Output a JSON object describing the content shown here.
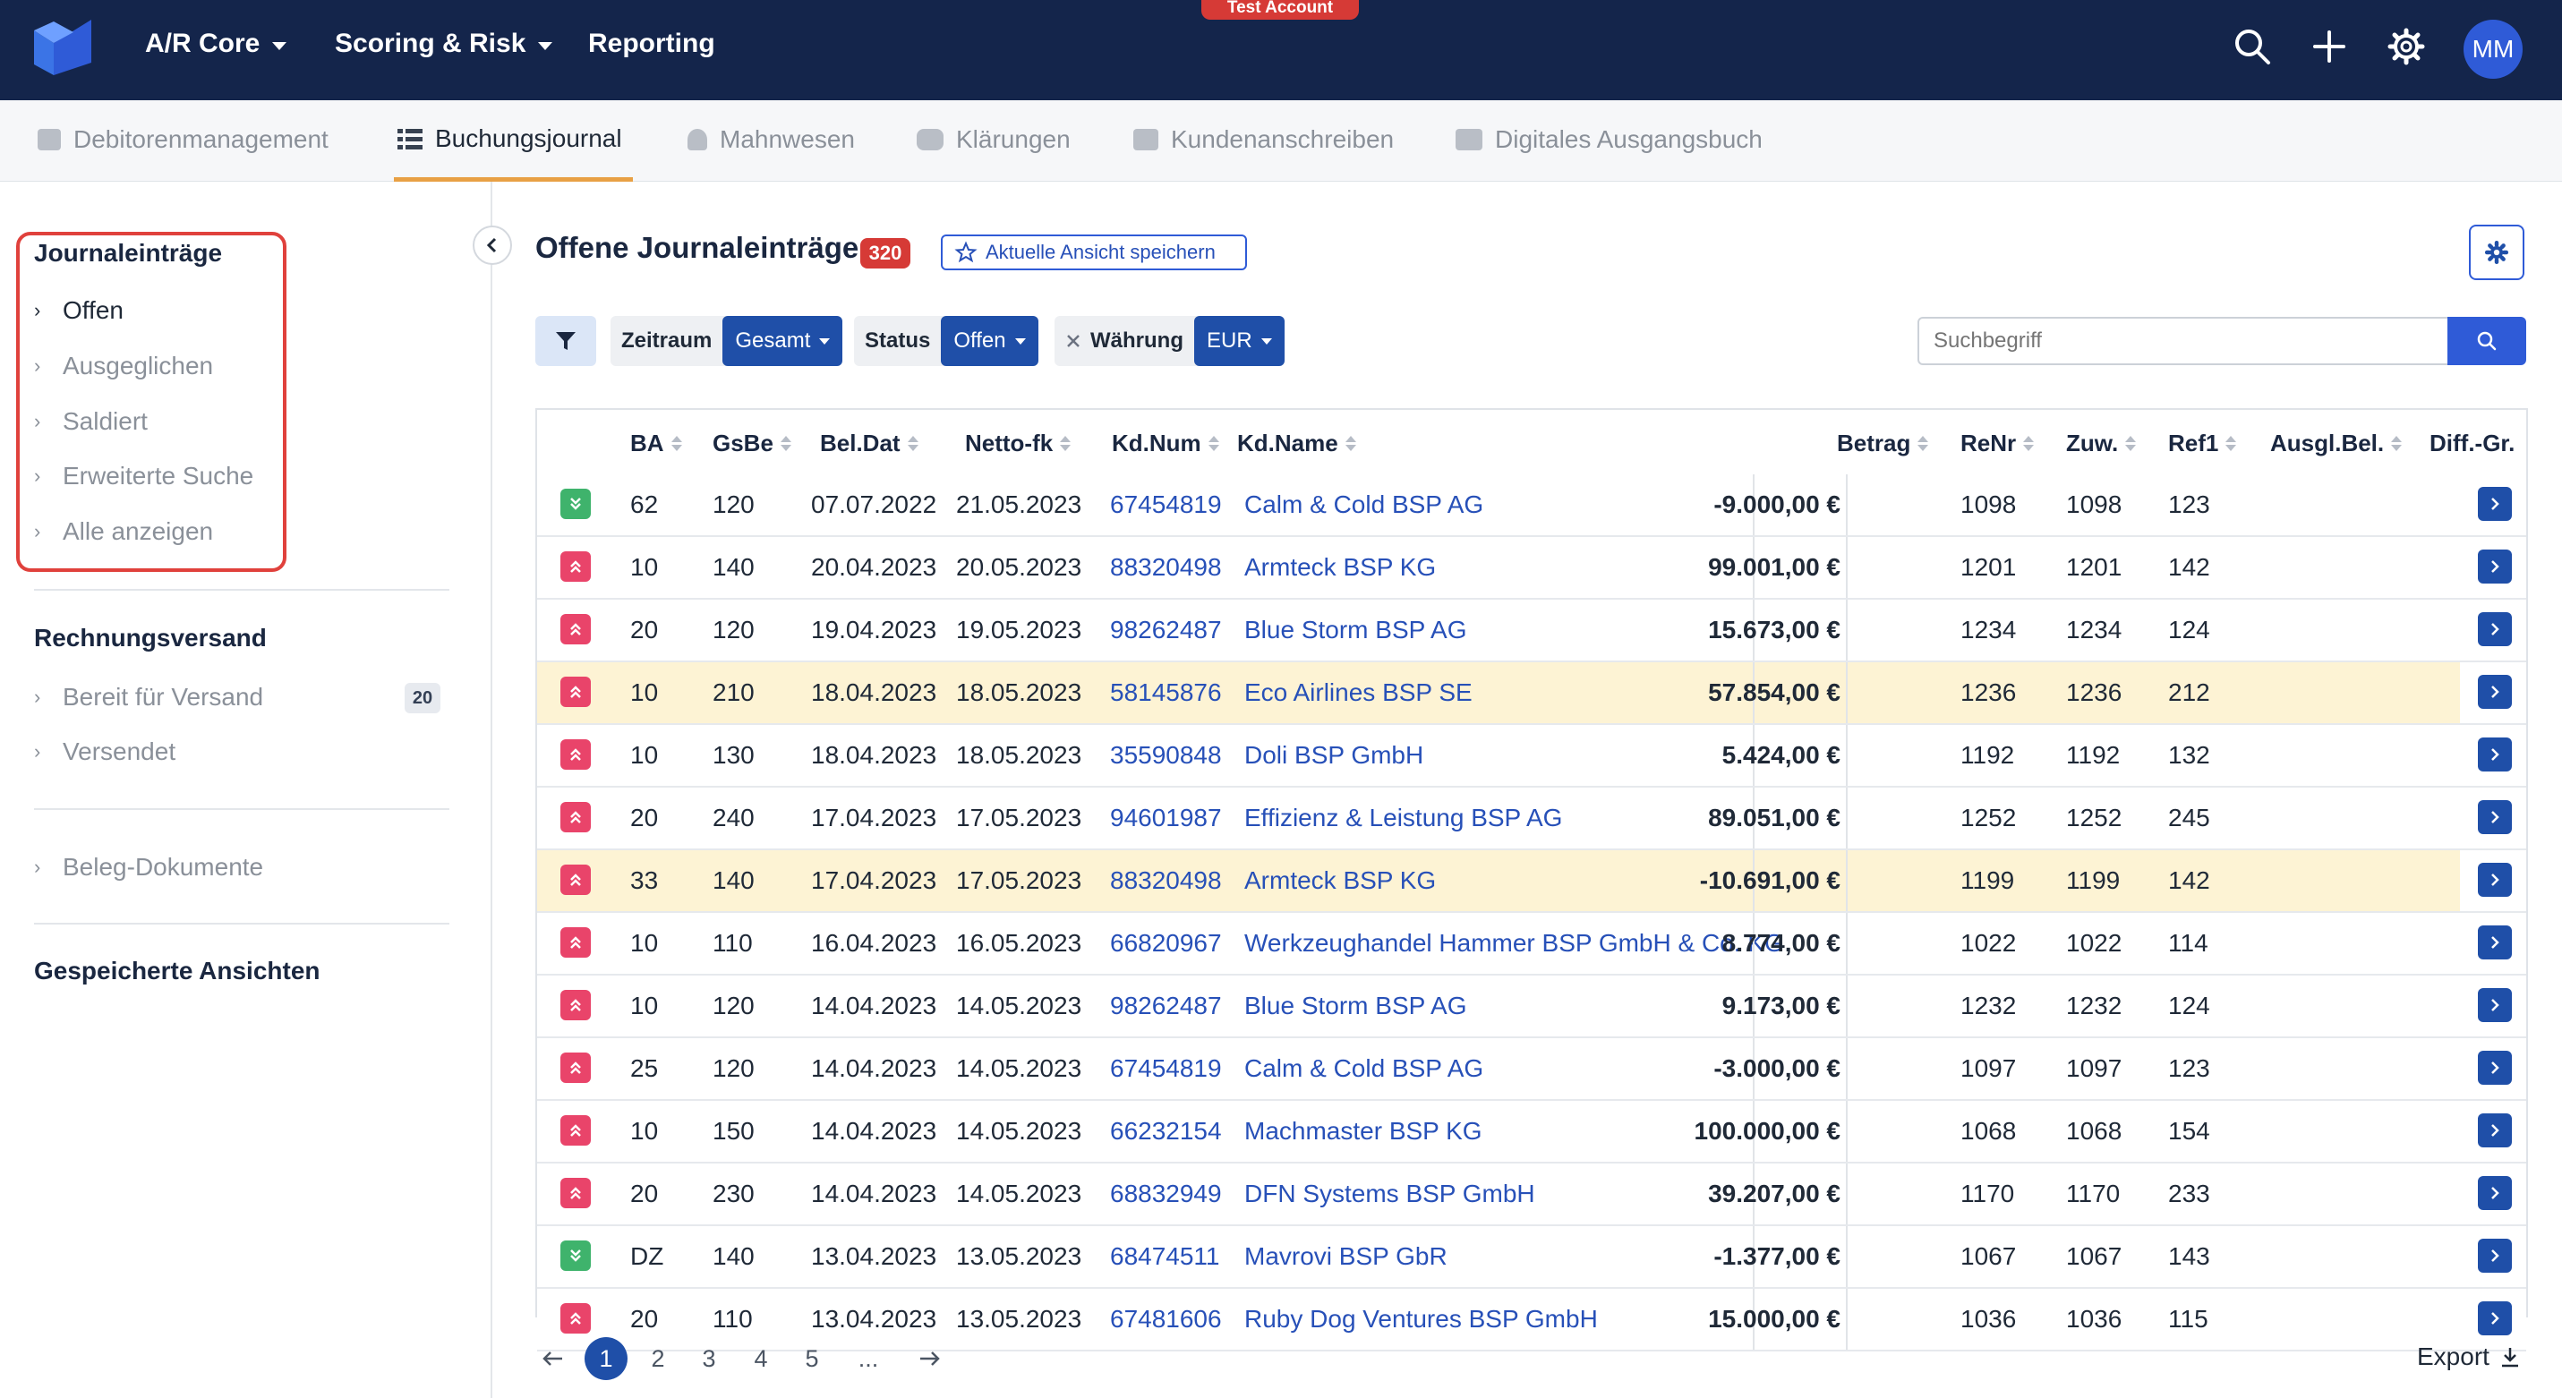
{
  "colors": {
    "topbar": "#14254b",
    "accent": "#1f4fa8",
    "tab_active_underline": "#e8a044",
    "danger": "#d63a36",
    "row_highlight": "#fdf3d4",
    "status_up": "#e9446a",
    "status_down": "#3fb36c"
  },
  "topbar": {
    "nav": [
      "A/R Core",
      "Scoring & Risk",
      "Reporting"
    ],
    "badge": "Test Account",
    "avatar": "MM",
    "icons": [
      "search-icon",
      "plus-icon",
      "gear-icon"
    ]
  },
  "tabs": [
    {
      "label": "Debitorenmanagement",
      "icon": "person-card-icon"
    },
    {
      "label": "Buchungsjournal",
      "icon": "list-icon",
      "active": true
    },
    {
      "label": "Mahnwesen",
      "icon": "bell-icon"
    },
    {
      "label": "Klärungen",
      "icon": "chat-icon"
    },
    {
      "label": "Kundenanschreiben",
      "icon": "mailbox-icon"
    },
    {
      "label": "Digitales Ausgangsbuch",
      "icon": "books-icon"
    }
  ],
  "sidebar": {
    "section1_title": "Journaleinträge",
    "section1_items": [
      "Offen",
      "Ausgeglichen",
      "Saldiert",
      "Erweiterte Suche",
      "Alle anzeigen"
    ],
    "section2_title": "Rechnungsversand",
    "section2_items": [
      "Bereit für Versand",
      "Versendet"
    ],
    "section2_count": "20",
    "section3_item": "Beleg-Dokumente",
    "section4_title": "Gespeicherte Ansichten"
  },
  "main": {
    "title": "Offene Journaleinträge",
    "count": "320",
    "save_view": "Aktuelle Ansicht speichern",
    "filters": {
      "zeitraum_label": "Zeitraum",
      "zeitraum_value": "Gesamt",
      "status_label": "Status",
      "status_value": "Offen",
      "waehrung_label": "Währung",
      "waehrung_value": "EUR"
    },
    "search_placeholder": "Suchbegriff"
  },
  "table": {
    "headers": [
      "BA",
      "GsBe",
      "Bel.Dat",
      "Netto-fk",
      "Kd.Num",
      "Kd.Name",
      "Betrag",
      "ReNr",
      "Zuw.",
      "Ref1",
      "Ausgl.Bel.",
      "Diff.-Gr."
    ],
    "rows": [
      {
        "status": "down",
        "ba": "62",
        "gsbe": "120",
        "beldat": "07.07.2022",
        "netto": "21.05.2023",
        "kdnum": "67454819",
        "kdname": "Calm & Cold BSP AG",
        "betrag": "-9.000,00 €",
        "renr": "1098",
        "zuw": "1098",
        "ref1": "123"
      },
      {
        "status": "up",
        "ba": "10",
        "gsbe": "140",
        "beldat": "20.04.2023",
        "netto": "20.05.2023",
        "kdnum": "88320498",
        "kdname": "Armteck BSP KG",
        "betrag": "99.001,00 €",
        "renr": "1201",
        "zuw": "1201",
        "ref1": "142"
      },
      {
        "status": "up",
        "ba": "20",
        "gsbe": "120",
        "beldat": "19.04.2023",
        "netto": "19.05.2023",
        "kdnum": "98262487",
        "kdname": "Blue Storm BSP AG",
        "betrag": "15.673,00 €",
        "renr": "1234",
        "zuw": "1234",
        "ref1": "124"
      },
      {
        "status": "up",
        "ba": "10",
        "gsbe": "210",
        "beldat": "18.04.2023",
        "netto": "18.05.2023",
        "kdnum": "58145876",
        "kdname": "Eco Airlines BSP SE",
        "betrag": "57.854,00 €",
        "renr": "1236",
        "zuw": "1236",
        "ref1": "212",
        "highlight": true
      },
      {
        "status": "up",
        "ba": "10",
        "gsbe": "130",
        "beldat": "18.04.2023",
        "netto": "18.05.2023",
        "kdnum": "35590848",
        "kdname": "Doli BSP GmbH",
        "betrag": "5.424,00 €",
        "renr": "1192",
        "zuw": "1192",
        "ref1": "132"
      },
      {
        "status": "up",
        "ba": "20",
        "gsbe": "240",
        "beldat": "17.04.2023",
        "netto": "17.05.2023",
        "kdnum": "94601987",
        "kdname": "Effizienz & Leistung BSP AG",
        "betrag": "89.051,00 €",
        "renr": "1252",
        "zuw": "1252",
        "ref1": "245"
      },
      {
        "status": "up",
        "ba": "33",
        "gsbe": "140",
        "beldat": "17.04.2023",
        "netto": "17.05.2023",
        "kdnum": "88320498",
        "kdname": "Armteck BSP KG",
        "betrag": "-10.691,00 €",
        "renr": "1199",
        "zuw": "1199",
        "ref1": "142",
        "highlight": true
      },
      {
        "status": "up",
        "ba": "10",
        "gsbe": "110",
        "beldat": "16.04.2023",
        "netto": "16.05.2023",
        "kdnum": "66820967",
        "kdname": "Werkzeughandel Hammer BSP GmbH & Co. KG",
        "betrag": "8.774,00 €",
        "renr": "1022",
        "zuw": "1022",
        "ref1": "114"
      },
      {
        "status": "up",
        "ba": "10",
        "gsbe": "120",
        "beldat": "14.04.2023",
        "netto": "14.05.2023",
        "kdnum": "98262487",
        "kdname": "Blue Storm BSP AG",
        "betrag": "9.173,00 €",
        "renr": "1232",
        "zuw": "1232",
        "ref1": "124"
      },
      {
        "status": "up",
        "ba": "25",
        "gsbe": "120",
        "beldat": "14.04.2023",
        "netto": "14.05.2023",
        "kdnum": "67454819",
        "kdname": "Calm & Cold BSP AG",
        "betrag": "-3.000,00 €",
        "renr": "1097",
        "zuw": "1097",
        "ref1": "123"
      },
      {
        "status": "up",
        "ba": "10",
        "gsbe": "150",
        "beldat": "14.04.2023",
        "netto": "14.05.2023",
        "kdnum": "66232154",
        "kdname": "Machmaster BSP KG",
        "betrag": "100.000,00 €",
        "renr": "1068",
        "zuw": "1068",
        "ref1": "154"
      },
      {
        "status": "up",
        "ba": "20",
        "gsbe": "230",
        "beldat": "14.04.2023",
        "netto": "14.05.2023",
        "kdnum": "68832949",
        "kdname": "DFN Systems BSP GmbH",
        "betrag": "39.207,00 €",
        "renr": "1170",
        "zuw": "1170",
        "ref1": "233"
      },
      {
        "status": "down",
        "ba": "DZ",
        "gsbe": "140",
        "beldat": "13.04.2023",
        "netto": "13.05.2023",
        "kdnum": "68474511",
        "kdname": "Mavrovi BSP GbR",
        "betrag": "-1.377,00 €",
        "renr": "1067",
        "zuw": "1067",
        "ref1": "143"
      },
      {
        "status": "up",
        "ba": "20",
        "gsbe": "110",
        "beldat": "13.04.2023",
        "netto": "13.05.2023",
        "kdnum": "67481606",
        "kdname": "Ruby Dog Ventures BSP GmbH",
        "betrag": "15.000,00 €",
        "renr": "1036",
        "zuw": "1036",
        "ref1": "115"
      }
    ]
  },
  "pagination": {
    "pages": [
      "1",
      "2",
      "3",
      "4",
      "5"
    ],
    "current": "1",
    "ellipsis": "...",
    "export_label": "Export"
  }
}
